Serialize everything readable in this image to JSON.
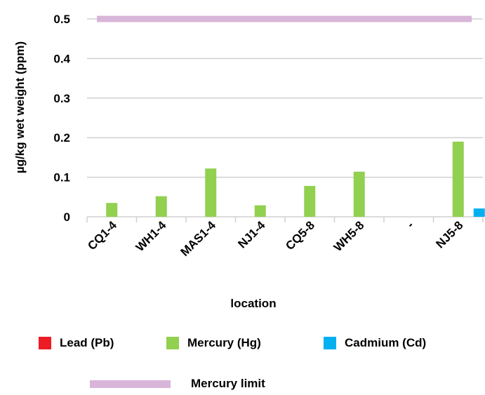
{
  "chart_data": {
    "type": "bar",
    "xlabel": "location",
    "ylabel": "µg/kg wet weight (ppm)",
    "categories": [
      "CQ1-4",
      "WH1-4",
      "MAS1-4",
      "NJ1-4",
      "CQ5-8",
      "WH5-8",
      "-",
      "NJ5-8"
    ],
    "ylim": [
      0,
      0.5
    ],
    "yticks": [
      "0",
      "0.1",
      "0.2",
      "0.3",
      "0.4",
      "0.5"
    ],
    "grid": true,
    "legend_position": "bottom",
    "series": [
      {
        "name": "Lead (Pb)",
        "color": "#ed1c24",
        "values": [
          0,
          0,
          0,
          0,
          0,
          0,
          0,
          0
        ]
      },
      {
        "name": "Mercury (Hg)",
        "color": "#92d050",
        "values": [
          0.035,
          0.052,
          0.122,
          0.029,
          0.078,
          0.114,
          0,
          0.19
        ]
      },
      {
        "name": "Cadmium (Cd)",
        "color": "#00b0f0",
        "values": [
          0,
          0,
          0,
          0,
          0,
          0,
          0,
          0.021
        ]
      }
    ],
    "limit_line": {
      "name": "Mercury limit",
      "value": 0.5,
      "color": "#d9b5d9"
    }
  }
}
